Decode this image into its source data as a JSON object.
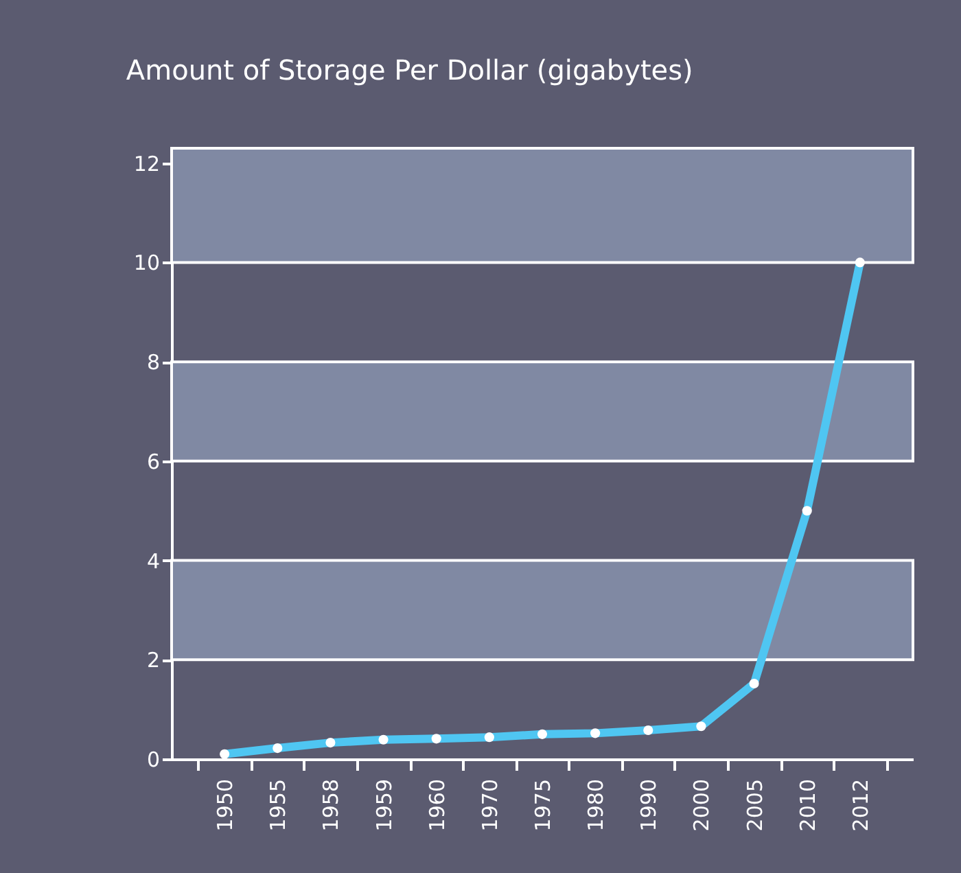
{
  "chart_data": {
    "type": "line",
    "title": "Amount of Storage Per Dollar (gigabytes)",
    "categories": [
      "1950",
      "1955",
      "1958",
      "1959",
      "1960",
      "1970",
      "1975",
      "1980",
      "1990",
      "2000",
      "2005",
      "2010",
      "2012"
    ],
    "series": [
      {
        "color": "#4fc6f2",
        "values": [
          0.1,
          0.22,
          0.33,
          0.39,
          0.41,
          0.44,
          0.5,
          0.52,
          0.58,
          0.66,
          1.52,
          5,
          10
        ]
      }
    ],
    "ylim": [
      0,
      12.3
    ],
    "yticks": [
      0,
      2,
      4,
      6,
      8,
      10,
      12
    ],
    "bands": [
      {
        "axis": "y",
        "from": 2,
        "to": 4,
        "color": "#8089a3"
      },
      {
        "axis": "y",
        "from": 6,
        "to": 8,
        "color": "#8089a3"
      },
      {
        "axis": "y",
        "from": 10,
        "to": 12.3,
        "color": "#8089a3"
      }
    ],
    "marker": "circle",
    "line_style": "solid",
    "grid": false
  }
}
